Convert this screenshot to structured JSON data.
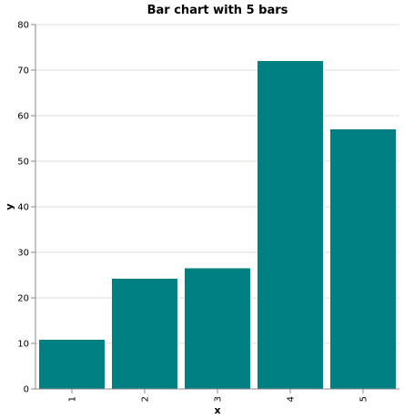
{
  "chart_data": {
    "type": "bar",
    "title": "Bar chart with 5 bars",
    "xlabel": "x",
    "ylabel": "y",
    "categories": [
      "1",
      "2",
      "3",
      "4",
      "5"
    ],
    "values": [
      10.8,
      24.2,
      26.5,
      72.0,
      57.0
    ],
    "ylim": [
      0,
      80
    ],
    "yticks": [
      0,
      10,
      20,
      30,
      40,
      50,
      60,
      70,
      80
    ],
    "bar_color": "#008080",
    "grid": true,
    "legend": "none"
  }
}
